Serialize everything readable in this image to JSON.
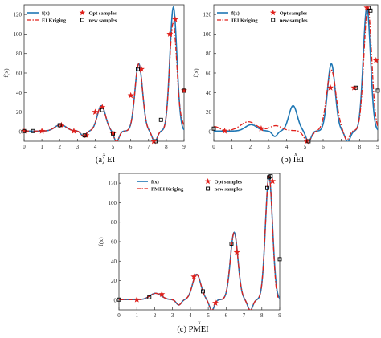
{
  "chart_data": [
    {
      "type": "line",
      "caption": "(a) EI",
      "xlabel": "x",
      "ylabel": "f(x)",
      "xlim": [
        0,
        9
      ],
      "ylim": [
        -10,
        130
      ],
      "xticks": [
        0,
        1,
        2,
        3,
        4,
        5,
        6,
        7,
        8,
        9
      ],
      "yticks": [
        0,
        20,
        40,
        60,
        80,
        100,
        120
      ],
      "grid": false,
      "legend_position": "top-left",
      "colors": {
        "true": "#1f77b4",
        "kriging": "#e0201b",
        "opt": "#e0201b",
        "new": "#000000"
      },
      "series": [
        {
          "name": "f(x)",
          "kind": "true"
        },
        {
          "name": "EI Kriging",
          "kind": "kriging"
        },
        {
          "name": "Opt samples",
          "kind": "opt",
          "x": [
            0.0,
            1.0,
            2.1,
            2.8,
            3.5,
            4.0,
            4.4,
            5.0,
            6.0,
            6.6,
            7.3,
            8.2,
            8.5,
            9.0
          ],
          "y": [
            0.5,
            0.5,
            6.5,
            0.5,
            -4,
            20,
            25,
            -2,
            37,
            64,
            -10,
            100,
            115,
            42
          ]
        },
        {
          "name": "new samples",
          "kind": "new",
          "x": [
            0.0,
            0.5,
            2.0,
            3.4,
            4.4,
            5.0,
            6.4,
            7.4,
            7.7,
            9.0
          ],
          "y": [
            0.5,
            0.5,
            6.5,
            -4,
            22,
            -2,
            64,
            -10,
            12,
            42
          ]
        }
      ]
    },
    {
      "type": "line",
      "caption": "(b) IEI",
      "xlabel": "x",
      "ylabel": "f(x)",
      "xlim": [
        0,
        9
      ],
      "ylim": [
        -10,
        130
      ],
      "xticks": [
        0,
        1,
        2,
        3,
        4,
        5,
        6,
        7,
        8,
        9
      ],
      "yticks": [
        0,
        20,
        40,
        60,
        80,
        100,
        120
      ],
      "grid": false,
      "legend_position": "top-left",
      "colors": {
        "true": "#1f77b4",
        "kriging": "#e0201b",
        "opt": "#e0201b",
        "new": "#000000"
      },
      "series": [
        {
          "name": "f(x)",
          "kind": "true"
        },
        {
          "name": "IEI Kriging",
          "kind": "kriging"
        },
        {
          "name": "Opt samples",
          "kind": "opt",
          "x": [
            0.6,
            2.6,
            5.1,
            6.4,
            7.7,
            8.4,
            8.9
          ],
          "y": [
            0.5,
            3,
            -10,
            45,
            45,
            127,
            73
          ]
        },
        {
          "name": "new samples",
          "kind": "new",
          "x": [
            0.0,
            5.2,
            7.8,
            8.5,
            8.6,
            9.0
          ],
          "y": [
            3,
            -10,
            45,
            127,
            124,
            42
          ]
        }
      ]
    },
    {
      "type": "line",
      "caption": "(c) PMEI",
      "xlabel": "x",
      "ylabel": "f(x)",
      "xlim": [
        0,
        9
      ],
      "ylim": [
        -10,
        130
      ],
      "xticks": [
        0,
        1,
        2,
        3,
        4,
        5,
        6,
        7,
        8,
        9
      ],
      "yticks": [
        0,
        20,
        40,
        60,
        80,
        100,
        120
      ],
      "grid": false,
      "legend_position": "top-center",
      "colors": {
        "true": "#1f77b4",
        "kriging": "#e0201b",
        "opt": "#e0201b",
        "new": "#000000"
      },
      "series": [
        {
          "name": "f(x)",
          "kind": "true"
        },
        {
          "name": "PMEI Kriging",
          "kind": "kriging"
        },
        {
          "name": "Opt samples",
          "kind": "opt",
          "x": [
            1.0,
            2.4,
            4.2,
            5.4,
            6.6,
            8.6
          ],
          "y": [
            0.5,
            6,
            24,
            -3,
            49,
            122
          ]
        },
        {
          "name": "new samples",
          "kind": "new",
          "x": [
            0.0,
            1.7,
            4.7,
            6.3,
            8.3,
            8.4,
            8.5,
            9.0
          ],
          "y": [
            0.5,
            3,
            9,
            58,
            115,
            126,
            127,
            42
          ]
        }
      ]
    }
  ]
}
